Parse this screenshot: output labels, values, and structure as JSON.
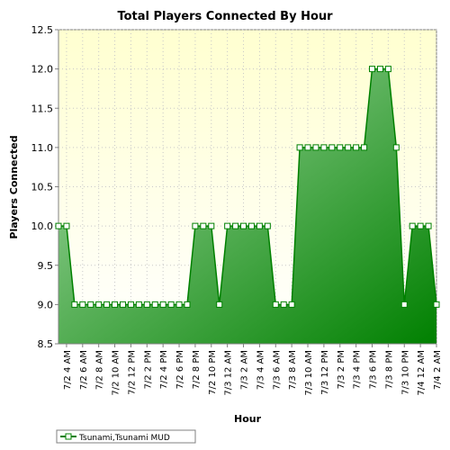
{
  "chart_data": {
    "type": "area",
    "title": "Total Players Connected By Hour",
    "xlabel": "Hour",
    "ylabel": "Players Connected",
    "ylim": [
      8.5,
      12.5
    ],
    "y_ticks": [
      "8.5",
      "9.0",
      "9.5",
      "10.0",
      "10.5",
      "11.0",
      "11.5",
      "12.0",
      "12.5"
    ],
    "x_tick_labels": [
      "7/2 4 AM",
      "7/2 6 AM",
      "7/2 8 AM",
      "7/2 10 AM",
      "7/2 12 PM",
      "7/2 2 PM",
      "7/2 4 PM",
      "7/2 6 PM",
      "7/2 8 PM",
      "7/2 10 PM",
      "7/3 12 AM",
      "7/3 2 AM",
      "7/3 4 AM",
      "7/3 6 AM",
      "7/3 8 AM",
      "7/3 10 AM",
      "7/3 12 PM",
      "7/3 2 PM",
      "7/3 4 PM",
      "7/3 6 PM",
      "7/3 8 PM",
      "7/3 10 PM",
      "7/4 12 AM",
      "7/4 2 AM"
    ],
    "grid": true,
    "legend_position": "bottom-left",
    "series": [
      {
        "name": "Tsunami,Tsunami MUD",
        "color": "#008000",
        "values": [
          10,
          10,
          9,
          9,
          9,
          9,
          9,
          9,
          9,
          9,
          9,
          9,
          9,
          9,
          9,
          9,
          9,
          10,
          10,
          10,
          9,
          10,
          10,
          10,
          10,
          10,
          10,
          9,
          9,
          9,
          11,
          11,
          11,
          11,
          11,
          11,
          11,
          11,
          11,
          12,
          12,
          12,
          11,
          9,
          10,
          10,
          10,
          9
        ]
      }
    ]
  },
  "colors": {
    "plot_gradient_top": "#ffffd0",
    "plot_gradient_bottom": "#ffffff",
    "area_light": "#a8dba8",
    "area_dark": "#008000",
    "grid": "#c8c8c8"
  }
}
